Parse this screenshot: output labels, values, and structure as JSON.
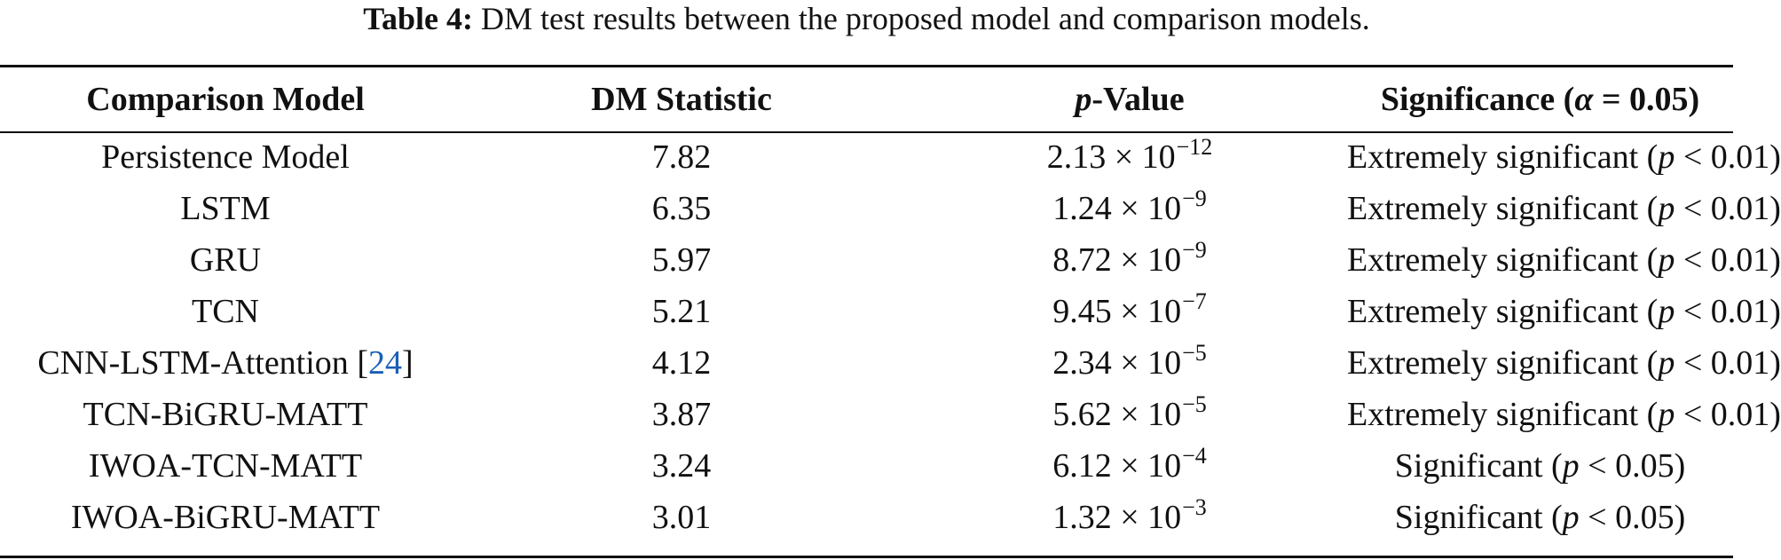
{
  "caption": {
    "label": "Table 4:",
    "text": "DM test results between the proposed model and comparison models."
  },
  "headers": {
    "model": "Comparison Model",
    "dm_statistic": "DM Statistic",
    "p_symbol": "p",
    "p_rest": "-Value",
    "significance_pre": "Significance (",
    "significance_alpha": "α",
    "significance_post": " = 0.05)"
  },
  "rows": [
    {
      "model": "Persistence Model",
      "ref": "",
      "dm": "7.82",
      "p_mantissa": "2.13 × 10",
      "p_exp": "−12",
      "sig_pre": "Extremely significant (",
      "sig_p": "p",
      "sig_post": " < 0.01)"
    },
    {
      "model": "LSTM",
      "ref": "",
      "dm": "6.35",
      "p_mantissa": "1.24 × 10",
      "p_exp": "−9",
      "sig_pre": "Extremely significant (",
      "sig_p": "p",
      "sig_post": " < 0.01)"
    },
    {
      "model": "GRU",
      "ref": "",
      "dm": "5.97",
      "p_mantissa": "8.72 × 10",
      "p_exp": "−9",
      "sig_pre": "Extremely significant (",
      "sig_p": "p",
      "sig_post": " < 0.01)"
    },
    {
      "model": "TCN",
      "ref": "",
      "dm": "5.21",
      "p_mantissa": "9.45 × 10",
      "p_exp": "−7",
      "sig_pre": "Extremely significant (",
      "sig_p": "p",
      "sig_post": " < 0.01)"
    },
    {
      "model": "CNN-LSTM-Attention",
      "ref": "24",
      "dm": "4.12",
      "p_mantissa": "2.34 × 10",
      "p_exp": "−5",
      "sig_pre": "Extremely significant (",
      "sig_p": "p",
      "sig_post": " < 0.01)"
    },
    {
      "model": "TCN-BiGRU-MATT",
      "ref": "",
      "dm": "3.87",
      "p_mantissa": "5.62 × 10",
      "p_exp": "−5",
      "sig_pre": "Extremely significant (",
      "sig_p": "p",
      "sig_post": " < 0.01)"
    },
    {
      "model": "IWOA-TCN-MATT",
      "ref": "",
      "dm": "3.24",
      "p_mantissa": "6.12 × 10",
      "p_exp": "−4",
      "sig_pre": "Significant (",
      "sig_p": "p",
      "sig_post": " < 0.05)"
    },
    {
      "model": "IWOA-BiGRU-MATT",
      "ref": "",
      "dm": "3.01",
      "p_mantissa": "1.32 × 10",
      "p_exp": "−3",
      "sig_pre": "Significant (",
      "sig_p": "p",
      "sig_post": " < 0.05)"
    }
  ],
  "colors": {
    "text": "#111111",
    "reference_link": "#1a5fb4",
    "rules": "#111111"
  }
}
